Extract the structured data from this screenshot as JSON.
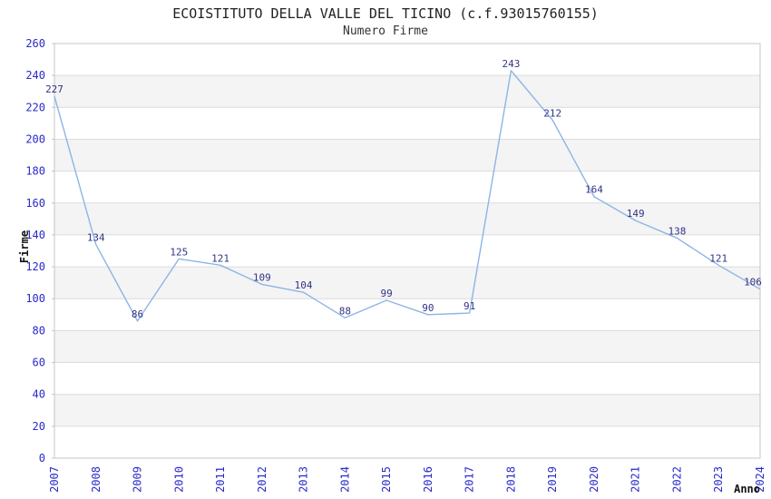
{
  "header": {
    "title": "ECOISTITUTO DELLA VALLE DEL TICINO (c.f.93015760155)",
    "subtitle": "Numero Firme"
  },
  "chart_data": {
    "type": "line",
    "title": "ECOISTITUTO DELLA VALLE DEL TICINO (c.f.93015760155)",
    "subtitle": "Numero Firme",
    "xlabel": "Anno",
    "ylabel": "Firme",
    "categories": [
      "2007",
      "2008",
      "2009",
      "2010",
      "2011",
      "2012",
      "2013",
      "2014",
      "2015",
      "2016",
      "2017",
      "2018",
      "2019",
      "2020",
      "2021",
      "2022",
      "2023",
      "2024"
    ],
    "values": [
      227,
      134,
      86,
      125,
      121,
      109,
      104,
      88,
      99,
      90,
      91,
      243,
      212,
      164,
      149,
      138,
      121,
      106
    ],
    "ylim": [
      0,
      260
    ],
    "ytick_step": 20,
    "grid": true,
    "legend_position": "none",
    "band_alternate": true,
    "colors": {
      "line": "#8cb5e5",
      "axis_tick_label": "#2a2ac8",
      "data_label": "#333388",
      "band": "#f4f4f4",
      "gridline": "#dcdcdc",
      "border": "#c4c4c4",
      "axis_title": "#111111"
    }
  }
}
